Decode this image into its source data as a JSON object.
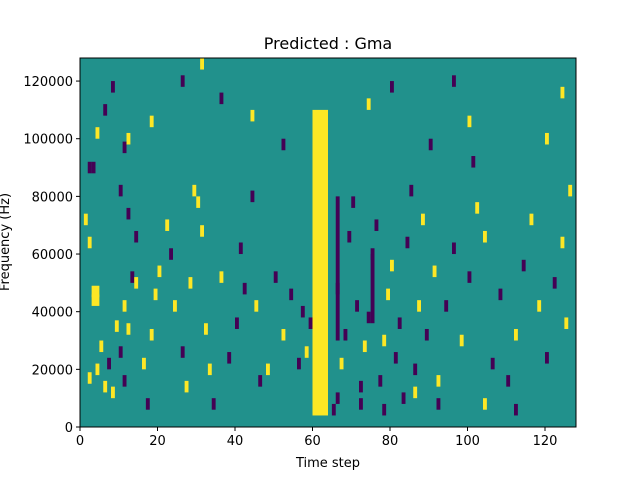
{
  "chart_data": {
    "type": "heatmap",
    "title": "Predicted : Gma",
    "xlabel": "Time step",
    "ylabel": "Frequency (Hz)",
    "xlim": [
      0,
      128
    ],
    "ylim": [
      0,
      128000
    ],
    "x_ticks": [
      0,
      20,
      40,
      60,
      80,
      100,
      120
    ],
    "x_tick_labels": [
      "0",
      "20",
      "40",
      "60",
      "80",
      "100",
      "120"
    ],
    "y_ticks": [
      0,
      20000,
      40000,
      60000,
      80000,
      100000,
      120000
    ],
    "y_tick_labels": [
      "0",
      "20000",
      "40000",
      "60000",
      "80000",
      "100000",
      "120000"
    ],
    "grid": false,
    "colormap": "viridis",
    "value_levels": {
      "low": 0,
      "background": 0.5,
      "high": 1
    },
    "colors": {
      "background": "#21918c",
      "high": "#fde725",
      "low": "#440154"
    },
    "yellow_band": {
      "x_start": 60,
      "x_end": 64,
      "y_start": 4000,
      "y_end": 110000
    }
  }
}
